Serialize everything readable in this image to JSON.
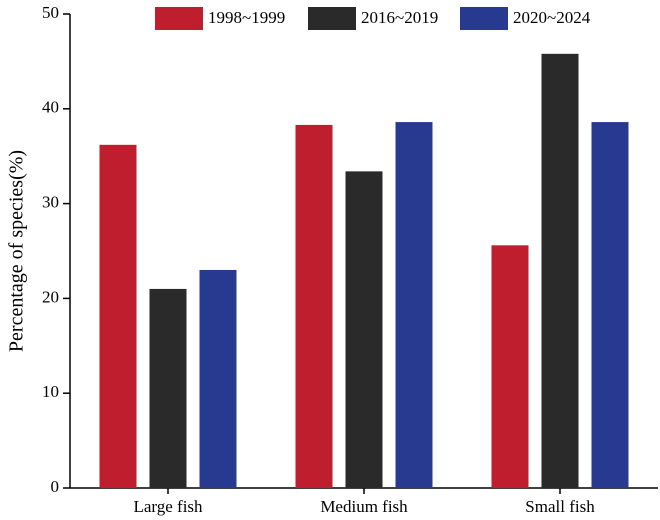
{
  "chart_data": {
    "type": "bar",
    "y_label": "Percentage of species(%)",
    "categories": [
      "Large fish",
      "Medium fish",
      "Small fish"
    ],
    "series": [
      {
        "name": "1998~1999",
        "color": "#be1e2d",
        "values": [
          36.2,
          38.3,
          25.6
        ]
      },
      {
        "name": "2016~2019",
        "color": "#2a2a2a",
        "values": [
          21,
          33.4,
          45.8
        ]
      },
      {
        "name": "2020~2024",
        "color": "#283a8f",
        "values": [
          23,
          38.6,
          38.6
        ]
      }
    ],
    "ylim": [
      0,
      50
    ],
    "yticks": [
      0,
      10,
      20,
      30,
      40,
      50
    ],
    "legend": "top"
  }
}
